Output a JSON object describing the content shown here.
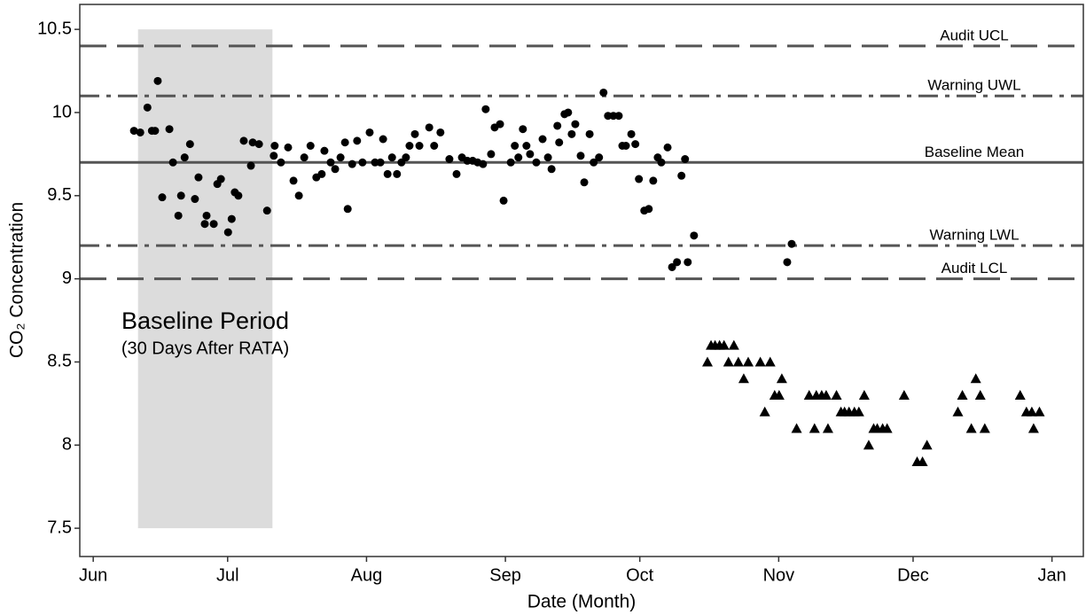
{
  "chart_data": {
    "type": "scatter",
    "x_label": "Date (Month)",
    "y_label": "CO₂ Concentration",
    "xlim": [
      -3,
      221
    ],
    "ylim": [
      7.33,
      10.65
    ],
    "xticks": [
      {
        "value": 0,
        "label": "Jun"
      },
      {
        "value": 30,
        "label": "Jul"
      },
      {
        "value": 61,
        "label": "Aug"
      },
      {
        "value": 92,
        "label": "Sep"
      },
      {
        "value": 122,
        "label": "Oct"
      },
      {
        "value": 153,
        "label": "Nov"
      },
      {
        "value": 183,
        "label": "Dec"
      },
      {
        "value": 214,
        "label": "Jan"
      }
    ],
    "yticks": [
      7.5,
      8.0,
      8.5,
      9.0,
      9.5,
      10.0,
      10.5
    ],
    "shaded_region": {
      "x": [
        10,
        40
      ],
      "y": [
        7.5,
        10.5
      ],
      "color": "#dcdcdc",
      "label": "Baseline Period",
      "sublabel": "(30 Days After RATA)"
    },
    "reference_lines": [
      {
        "value": 10.4,
        "label": "Audit UCL",
        "style": "dashed"
      },
      {
        "value": 10.1,
        "label": "Warning UWL",
        "style": "dashdot"
      },
      {
        "value": 9.7,
        "label": "Baseline Mean",
        "style": "solid"
      },
      {
        "value": 9.2,
        "label": "Warning LWL",
        "style": "dashdot"
      },
      {
        "value": 9.0,
        "label": "Audit LCL",
        "style": "dashed"
      }
    ],
    "series": [
      {
        "marker": "circle",
        "color": "#000000",
        "x": [
          9.1,
          10.5,
          12.1,
          13.1,
          13.8,
          14.4,
          15.4,
          17.0,
          17.8,
          19.0,
          19.6,
          20.4,
          21.6,
          22.7,
          23.5,
          24.9,
          25.3,
          26.9,
          27.7,
          28.5,
          30.1,
          30.9,
          31.6,
          32.4,
          33.6,
          35.2,
          35.6,
          37.0,
          38.8,
          40.3,
          40.5,
          41.9,
          43.5,
          44.7,
          45.9,
          47.1,
          48.5,
          49.8,
          51.0,
          51.6,
          53.0,
          54.0,
          55.2,
          56.2,
          56.8,
          57.8,
          58.9,
          60.1,
          61.7,
          62.9,
          64.1,
          64.7,
          65.7,
          66.7,
          67.8,
          68.8,
          69.8,
          70.6,
          71.8,
          72.8,
          75.0,
          76.1,
          77.5,
          79.5,
          81.1,
          82.3,
          83.5,
          84.7,
          85.8,
          87.0,
          87.6,
          88.8,
          89.6,
          90.8,
          91.6,
          93.2,
          94.1,
          94.9,
          95.9,
          96.7,
          97.5,
          98.9,
          100.3,
          101.5,
          102.3,
          103.6,
          104.0,
          105.2,
          106.0,
          106.8,
          107.6,
          108.8,
          109.6,
          110.8,
          111.7,
          112.9,
          113.9,
          114.9,
          116.1,
          117.3,
          118.1,
          118.9,
          120.1,
          121.0,
          121.8,
          123.0,
          124.0,
          125.0,
          126.0,
          126.8,
          128.2,
          129.2,
          130.3,
          131.3,
          132.1,
          132.7,
          134.1,
          154.9,
          155.9
        ],
        "values": [
          9.89,
          9.88,
          10.03,
          9.89,
          9.89,
          10.19,
          9.49,
          9.9,
          9.7,
          9.38,
          9.5,
          9.73,
          9.81,
          9.48,
          9.61,
          9.33,
          9.38,
          9.33,
          9.57,
          9.6,
          9.28,
          9.36,
          9.52,
          9.5,
          9.83,
          9.68,
          9.82,
          9.81,
          9.41,
          9.74,
          9.8,
          9.7,
          9.79,
          9.59,
          9.5,
          9.73,
          9.8,
          9.61,
          9.63,
          9.77,
          9.7,
          9.66,
          9.73,
          9.82,
          9.42,
          9.69,
          9.83,
          9.7,
          9.88,
          9.7,
          9.7,
          9.84,
          9.63,
          9.73,
          9.63,
          9.7,
          9.73,
          9.8,
          9.87,
          9.8,
          9.91,
          9.8,
          9.88,
          9.72,
          9.63,
          9.73,
          9.71,
          9.71,
          9.7,
          9.69,
          10.02,
          9.75,
          9.91,
          9.93,
          9.47,
          9.7,
          9.8,
          9.73,
          9.9,
          9.8,
          9.75,
          9.7,
          9.84,
          9.73,
          9.66,
          9.92,
          9.82,
          9.99,
          10.0,
          9.87,
          9.93,
          9.74,
          9.58,
          9.87,
          9.7,
          9.73,
          10.12,
          9.98,
          9.98,
          9.98,
          9.8,
          9.8,
          9.87,
          9.81,
          9.6,
          9.41,
          9.42,
          9.59,
          9.73,
          9.7,
          9.79,
          9.07,
          9.1,
          9.62,
          9.72,
          9.1,
          9.26,
          9.1,
          9.21
        ]
      },
      {
        "marker": "triangle",
        "color": "#000000",
        "x": [
          137.1,
          137.9,
          138.8,
          139.8,
          140.8,
          141.8,
          143.0,
          144.0,
          145.2,
          146.2,
          148.9,
          149.9,
          151.1,
          152.1,
          153.1,
          153.7,
          157.0,
          159.8,
          161.0,
          161.4,
          162.6,
          163.6,
          164.0,
          165.9,
          166.9,
          167.7,
          168.7,
          169.9,
          170.9,
          172.1,
          173.1,
          174.2,
          175.0,
          176.2,
          177.2,
          181.0,
          183.9,
          185.1,
          186.1,
          193.0,
          194.0,
          196.0,
          197.0,
          198.0,
          199.0,
          206.9,
          208.3,
          209.5,
          209.9,
          211.2
        ],
        "values": [
          8.5,
          8.6,
          8.6,
          8.6,
          8.6,
          8.5,
          8.6,
          8.5,
          8.4,
          8.5,
          8.5,
          8.2,
          8.5,
          8.3,
          8.3,
          8.4,
          8.1,
          8.3,
          8.1,
          8.3,
          8.3,
          8.3,
          8.1,
          8.3,
          8.2,
          8.2,
          8.2,
          8.2,
          8.2,
          8.3,
          8.0,
          8.1,
          8.1,
          8.1,
          8.1,
          8.3,
          7.9,
          7.9,
          8.0,
          8.2,
          8.3,
          8.1,
          8.4,
          8.3,
          8.1,
          8.3,
          8.2,
          8.2,
          8.1,
          8.2
        ]
      }
    ]
  }
}
